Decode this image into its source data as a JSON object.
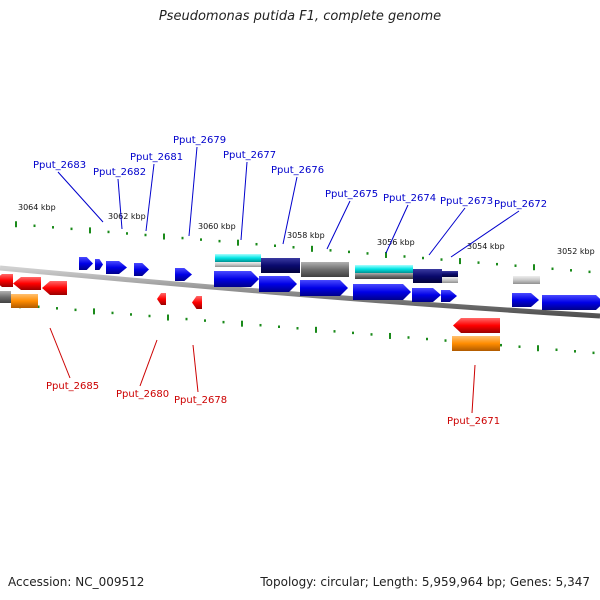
{
  "title": "Pseudomonas putida F1, complete genome",
  "footer": {
    "accession": "Accession: NC_009512",
    "summary": "Topology: circular; Length: 5,959,964 bp; Genes: 5,347"
  },
  "colors": {
    "forward_label": "#0000cc",
    "reverse_label": "#cc0000",
    "backbone": "#8c8c8c",
    "tick": "#1a8a1a",
    "forward_gene": "#0000e6",
    "reverse_gene": "#ff0000",
    "orange": "#ff8c00",
    "cyan": "#00e5e5",
    "navy": "#0a0a6e",
    "gray": "#6e6e6e",
    "lightgray": "#c8c8c8"
  },
  "kbp_labels": [
    "3064 kbp",
    "3062 kbp",
    "3060 kbp",
    "3058 kbp",
    "3056 kbp",
    "3054 kbp",
    "3052 kbp"
  ],
  "forward_genes": [
    "Pput_2683",
    "Pput_2682",
    "Pput_2681",
    "Pput_2679",
    "Pput_2677",
    "Pput_2676",
    "Pput_2675",
    "Pput_2674",
    "Pput_2673",
    "Pput_2672"
  ],
  "reverse_genes": [
    "Pput_2685",
    "Pput_2680",
    "Pput_2678",
    "Pput_2671"
  ]
}
